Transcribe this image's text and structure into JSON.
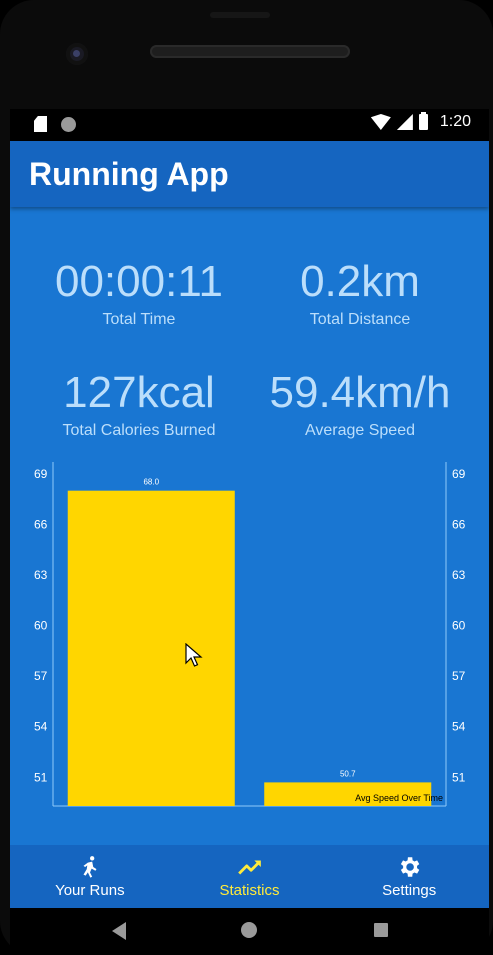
{
  "status_bar": {
    "time": "1:20"
  },
  "app_bar": {
    "title": "Running App"
  },
  "stats": {
    "total_time": {
      "value": "00:00:11",
      "label": "Total Time"
    },
    "total_distance": {
      "value": "0.2km",
      "label": "Total Distance"
    },
    "calories": {
      "value": "127kcal",
      "label": "Total Calories Burned"
    },
    "avg_speed": {
      "value": "59.4km/h",
      "label": "Average Speed"
    }
  },
  "chart_data": {
    "type": "bar",
    "categories": [
      "",
      ""
    ],
    "values": [
      68.0,
      50.7
    ],
    "value_labels": [
      "68.0",
      "50.7"
    ],
    "ylim": [
      49.3,
      69.7
    ],
    "y_ticks": [
      "69",
      "66",
      "63",
      "60",
      "57",
      "54",
      "51"
    ],
    "y_tick_values": [
      69,
      66,
      63,
      60,
      57,
      54,
      51
    ],
    "series": [
      {
        "name": "Avg Speed Over Time",
        "values": [
          68.0,
          50.7
        ]
      }
    ],
    "legend": "Avg Speed Over Time",
    "bar_color": "#FFD600",
    "grid": false
  },
  "bottom_nav": {
    "items": [
      {
        "label": "Your Runs",
        "icon": "runner-icon",
        "active": false
      },
      {
        "label": "Statistics",
        "icon": "trending-icon",
        "active": true
      },
      {
        "label": "Settings",
        "icon": "gear-icon",
        "active": false
      }
    ]
  },
  "colors": {
    "primary": "#1976D2",
    "primary_dark": "#1565C0",
    "accent": "#FFEB3B",
    "stat_text": "#BBDEFB"
  }
}
